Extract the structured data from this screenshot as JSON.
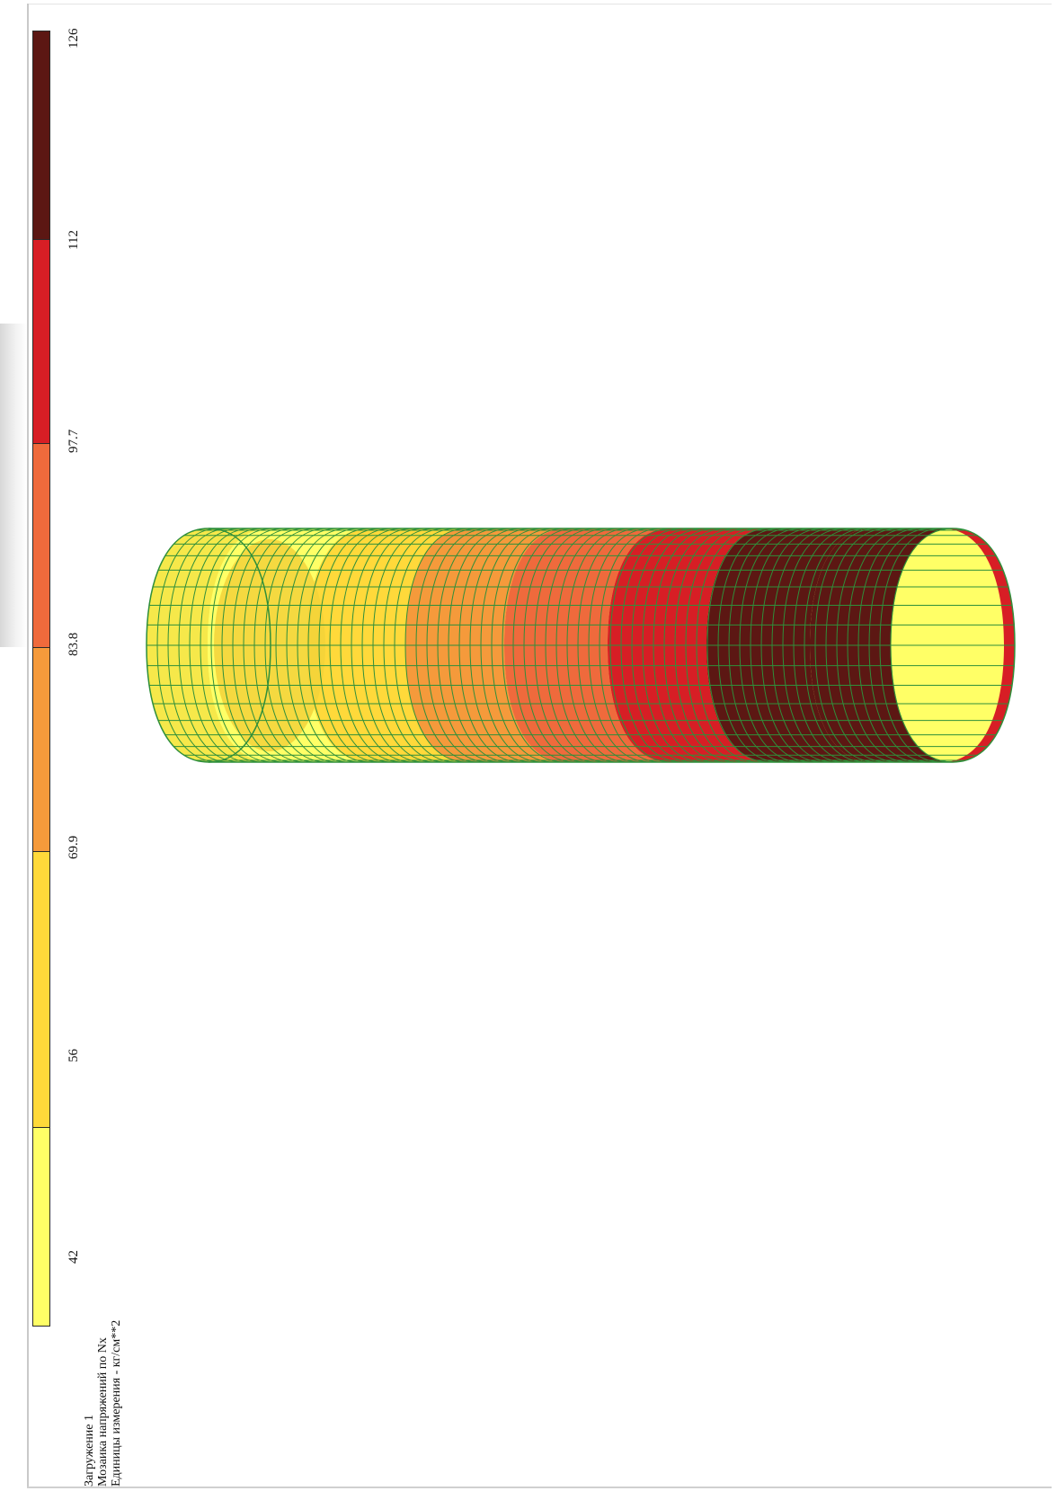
{
  "captions": {
    "line1": "Загружение 1",
    "line2": "Мозаика напряжений по Nx",
    "line3": "Единицы измерения - кг/см**2"
  },
  "legend": {
    "tick_labels": [
      "42",
      "56",
      "69.9",
      "83.8",
      "97.7",
      "112",
      "126"
    ],
    "bands": [
      {
        "from": 42,
        "to": 56,
        "color": "#ffff66"
      },
      {
        "from": 56,
        "to": 69.9,
        "color": "#ffd93a"
      },
      {
        "from": 69.9,
        "to": 83.8,
        "color": "#f59a3b"
      },
      {
        "from": 83.8,
        "to": 97.7,
        "color": "#ef6a3c"
      },
      {
        "from": 97.7,
        "to": 112,
        "color": "#d71e25"
      },
      {
        "from": 112,
        "to": 126,
        "color": "#5c1713"
      }
    ]
  },
  "model": {
    "mesh_color": "#2f8f3a",
    "band_colors": [
      "#ffff66",
      "#f6e84a",
      "#ffd93a",
      "#f59a3b",
      "#ef6a3c",
      "#d71e25",
      "#5c1713"
    ]
  }
}
